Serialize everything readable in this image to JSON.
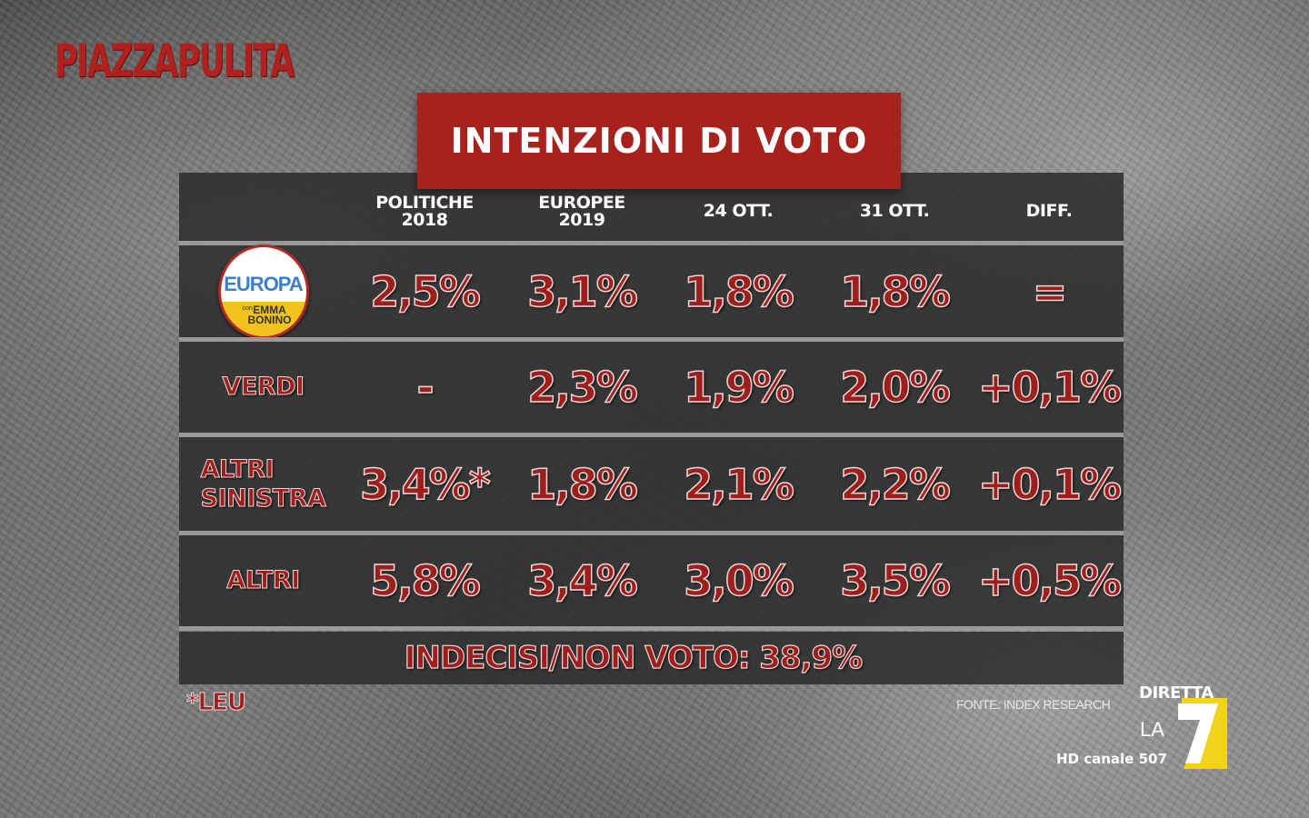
{
  "show": {
    "name": "PIAZZAPULITA"
  },
  "title": "INTENZIONI DI VOTO",
  "columns": [
    {
      "line1": "POLITICHE",
      "line2": "2018"
    },
    {
      "line1": "EUROPEE",
      "line2": "2019"
    },
    {
      "line1": "24 OTT.",
      "line2": ""
    },
    {
      "line1": "31 OTT.",
      "line2": ""
    },
    {
      "line1": "DIFF.",
      "line2": ""
    }
  ],
  "rows": [
    {
      "party": "",
      "logo": {
        "word": "EUROPA",
        "small": "con",
        "line1": "EMMA",
        "line2": "BONINO"
      },
      "values": [
        "2,5%",
        "3,1%",
        "1,8%",
        "1,8%",
        "="
      ]
    },
    {
      "party": "VERDI",
      "values": [
        "-",
        "2,3%",
        "1,9%",
        "2,0%",
        "+0,1%"
      ]
    },
    {
      "party": "ALTRI SINISTRA",
      "party_line1": "ALTRI",
      "party_line2": "SINISTRA",
      "values": [
        "3,4%*",
        "1,8%",
        "2,1%",
        "2,2%",
        "+0,1%"
      ]
    },
    {
      "party": "ALTRI",
      "values": [
        "5,8%",
        "3,4%",
        "3,0%",
        "3,5%",
        "+0,5%"
      ]
    }
  ],
  "undecided": "INDECISI/NON VOTO: 38,9%",
  "footnote": "*LEU",
  "source": "FONTE: INDEX RESEARCH",
  "broadcaster": {
    "diretta": "DIRETTA",
    "la": "LA",
    "channel": "HD canale 507"
  },
  "colors": {
    "accent_red": "#a7211d",
    "value_red": "#9e1e1b",
    "panel": "#2d2d2d",
    "la7_yellow": "#f2d21b"
  }
}
